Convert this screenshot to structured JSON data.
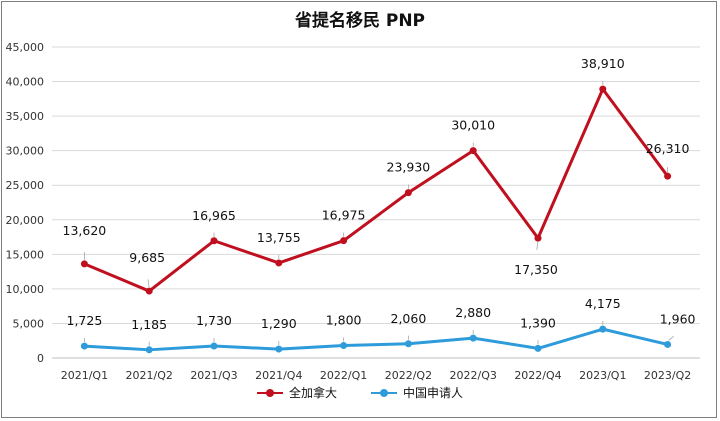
{
  "chart_data": {
    "type": "line",
    "title": "省提名移民 PNP",
    "categories": [
      "2021/Q1",
      "2021/Q2",
      "2021/Q3",
      "2021/Q4",
      "2022/Q1",
      "2022/Q2",
      "2022/Q3",
      "2022/Q4",
      "2023/Q1",
      "2023/Q2"
    ],
    "series": [
      {
        "name": "全加拿大",
        "color": "#C00F1E",
        "values": [
          13620,
          9685,
          16965,
          13755,
          16975,
          23930,
          30010,
          17350,
          38910,
          26310
        ],
        "labels": [
          "13,620",
          "9,685",
          "16,965",
          "13,755",
          "16,975",
          "23,930",
          "30,010",
          "17,350",
          "38,910",
          "26,310"
        ]
      },
      {
        "name": "中国申请人",
        "color": "#2E9BDB",
        "values": [
          1725,
          1185,
          1730,
          1290,
          1800,
          2060,
          2880,
          1390,
          4175,
          1960
        ],
        "labels": [
          "1,725",
          "1,185",
          "1,730",
          "1,290",
          "1,800",
          "2,060",
          "2,880",
          "1,390",
          "4,175",
          "1,960"
        ]
      }
    ],
    "ylim": [
      0,
      45000
    ],
    "yticks": [
      0,
      5000,
      10000,
      15000,
      20000,
      25000,
      30000,
      35000,
      40000,
      45000
    ],
    "ytick_labels": [
      "0",
      "5,000",
      "10,000",
      "15,000",
      "20,000",
      "25,000",
      "30,000",
      "35,000",
      "40,000",
      "45,000"
    ],
    "grid": true,
    "legend_position": "bottom"
  }
}
